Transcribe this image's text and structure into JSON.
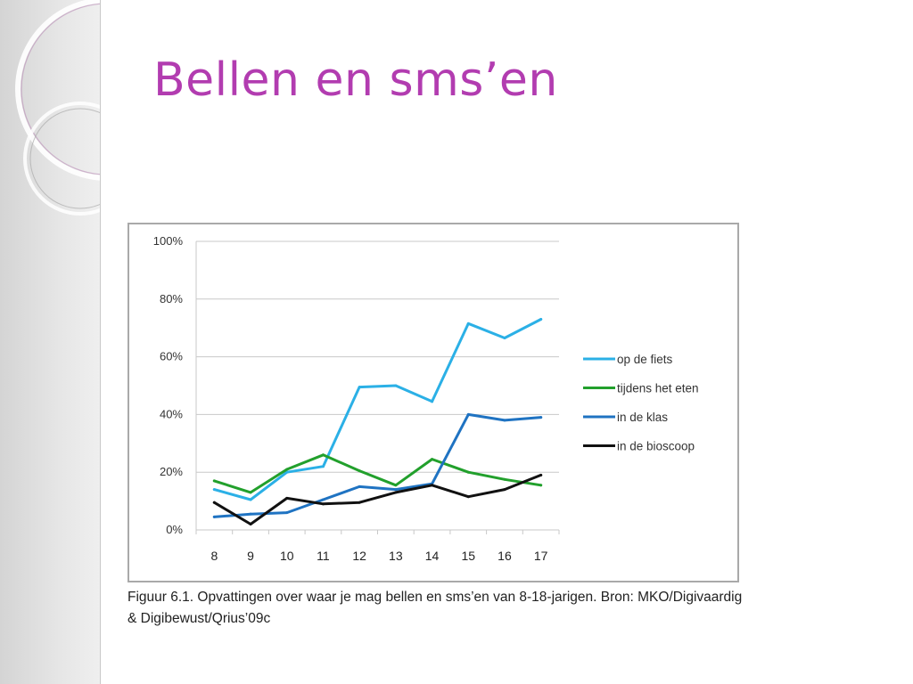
{
  "slide": {
    "title": "Bellen en sms’en",
    "caption_line1": "Figuur 6.1. Opvattingen over waar je mag bellen en sms’en van 8-18-jarigen. Bron: MKO/Digivaardig",
    "caption_line2": "& Digibewust/Qrius’09c"
  },
  "colors": {
    "title": "#b23cb0",
    "grid": "#c8c8c8"
  },
  "chart_data": {
    "type": "line",
    "title": "",
    "xlabel": "",
    "ylabel": "",
    "categories": [
      "8",
      "9",
      "10",
      "11",
      "12",
      "13",
      "14",
      "15",
      "16",
      "17"
    ],
    "ylim": [
      0,
      100
    ],
    "yticks": [
      "0%",
      "20%",
      "40%",
      "60%",
      "80%",
      "100%"
    ],
    "grid": true,
    "legend_position": "right",
    "series": [
      {
        "name": "op de fiets",
        "color": "#2bb0e6",
        "values": [
          14,
          10.5,
          20,
          22,
          49.5,
          50,
          44.5,
          71.5,
          66.5,
          73
        ]
      },
      {
        "name": "tijdens het eten",
        "color": "#22a02c",
        "values": [
          17,
          13,
          21,
          26,
          20.5,
          15.5,
          24.5,
          20,
          17.5,
          15.5
        ]
      },
      {
        "name": "in de klas",
        "color": "#1f73c2",
        "values": [
          4.5,
          5.5,
          6,
          10.5,
          15,
          14,
          16,
          40,
          38,
          39
        ]
      },
      {
        "name": "in de bioscoop",
        "color": "#111111",
        "values": [
          9.5,
          2,
          11,
          9,
          9.5,
          13,
          15.5,
          11.5,
          14,
          19
        ]
      }
    ]
  }
}
